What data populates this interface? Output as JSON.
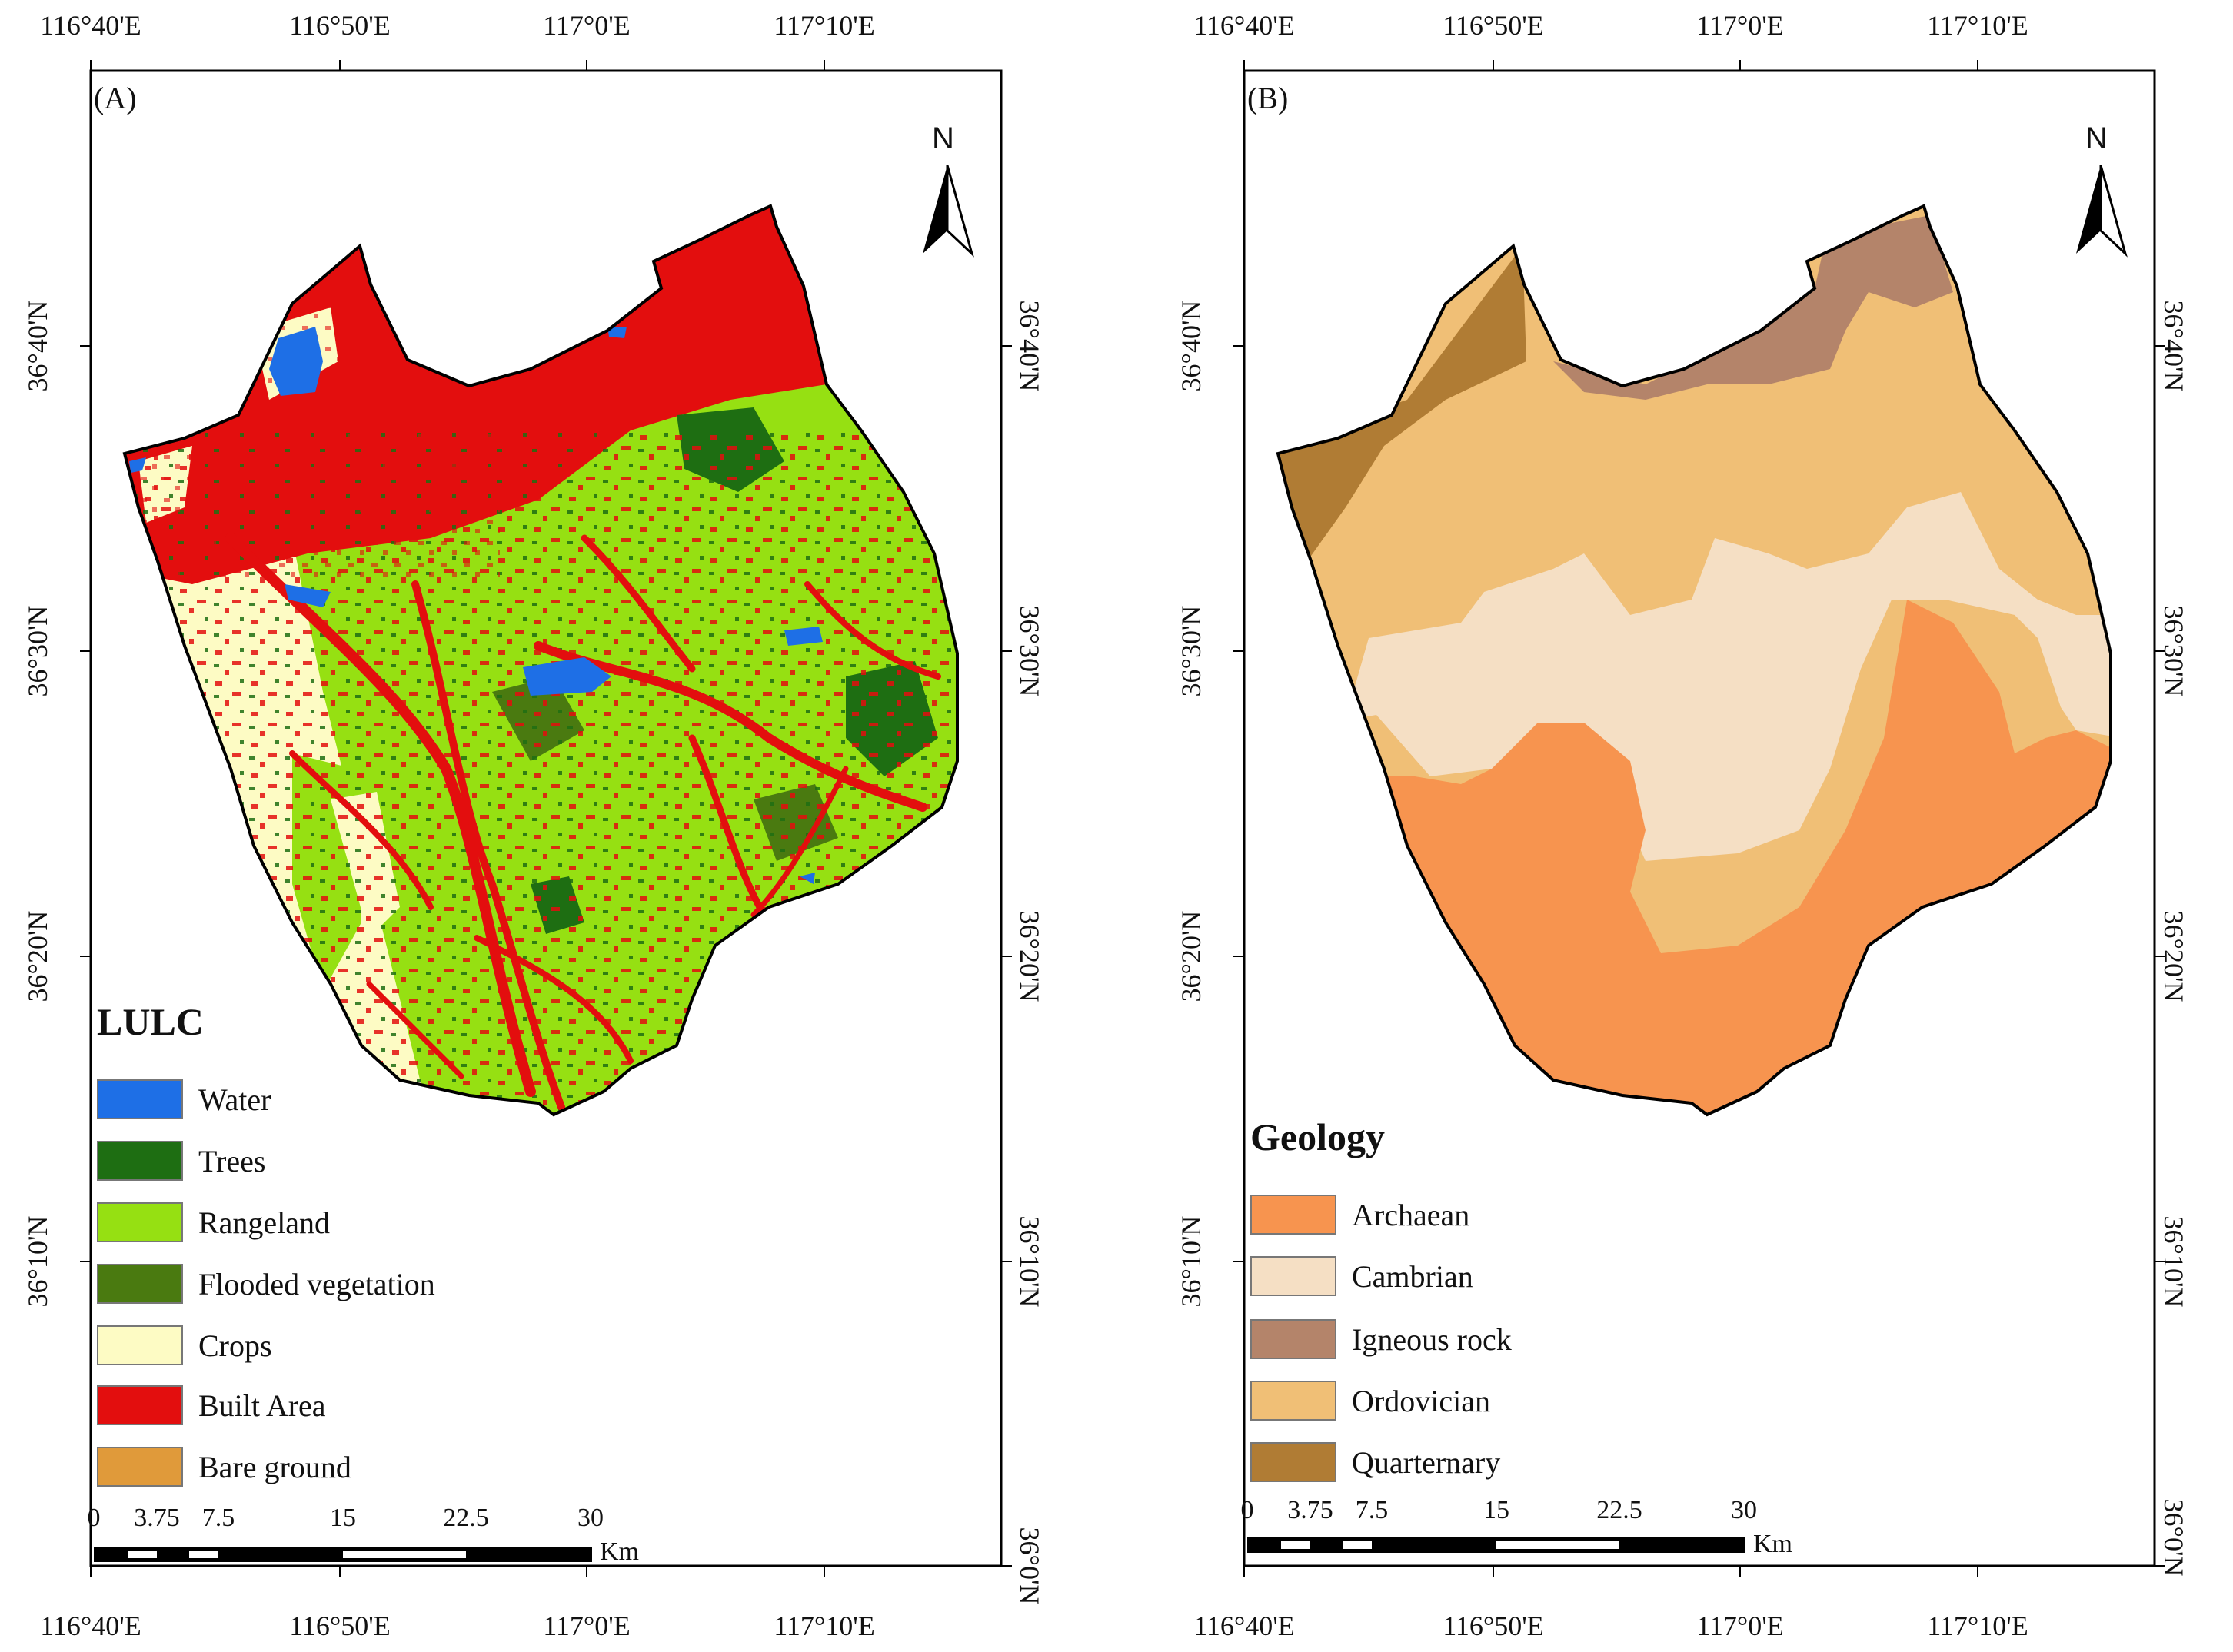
{
  "panels": [
    {
      "label": "(A)",
      "north": "N",
      "top_ticks": [
        "116°40'E",
        "116°50'E",
        "117°0'E",
        "117°10'E"
      ],
      "bottom_ticks": [
        "116°40'E",
        "116°50'E",
        "117°0'E",
        "117°10'E"
      ],
      "left_ticks": [
        "36°40'N",
        "36°30'N",
        "36°20'N",
        "36°10'N"
      ],
      "right_ticks": [
        "36°40'N",
        "36°30'N",
        "36°20'N",
        "36°10'N",
        "36°0'N"
      ],
      "legend": {
        "title": "LULC",
        "items": [
          {
            "label": "Water",
            "color": "#1e6fe6"
          },
          {
            "label": "Trees",
            "color": "#1e6e12"
          },
          {
            "label": "Rangeland",
            "color": "#96e012"
          },
          {
            "label": "Flooded vegetation",
            "color": "#4a7a10"
          },
          {
            "label": "Crops",
            "color": "#fdfbc4"
          },
          {
            "label": "Built Area",
            "color": "#e30e0e"
          },
          {
            "label": "Bare ground",
            "color": "#e09a3a"
          }
        ]
      },
      "scale": {
        "labels": [
          "0",
          "3.75",
          "7.5",
          "15",
          "22.5",
          "30"
        ],
        "unit": "Km"
      }
    },
    {
      "label": "(B)",
      "north": "N",
      "top_ticks": [
        "116°40'E",
        "116°50'E",
        "117°0'E",
        "117°10'E"
      ],
      "bottom_ticks": [
        "116°40'E",
        "116°50'E",
        "117°0'E",
        "117°10'E"
      ],
      "left_ticks": [
        "36°40'N",
        "36°30'N",
        "36°20'N",
        "36°10'N"
      ],
      "right_ticks": [
        "36°40'N",
        "36°30'N",
        "36°20'N",
        "36°10'N",
        "36°0'N"
      ],
      "legend": {
        "title": "Geology",
        "items": [
          {
            "label": "Archaean",
            "color": "#f7944f"
          },
          {
            "label": "Cambrian",
            "color": "#f5dfc4"
          },
          {
            "label": "Igneous rock",
            "color": "#b4846a"
          },
          {
            "label": "Ordovician",
            "color": "#f0bf76"
          },
          {
            "label": "Quarternary",
            "color": "#b07c34"
          }
        ]
      },
      "scale": {
        "labels": [
          "0",
          "3.75",
          "7.5",
          "15",
          "22.5",
          "30"
        ],
        "unit": "Km"
      }
    }
  ]
}
